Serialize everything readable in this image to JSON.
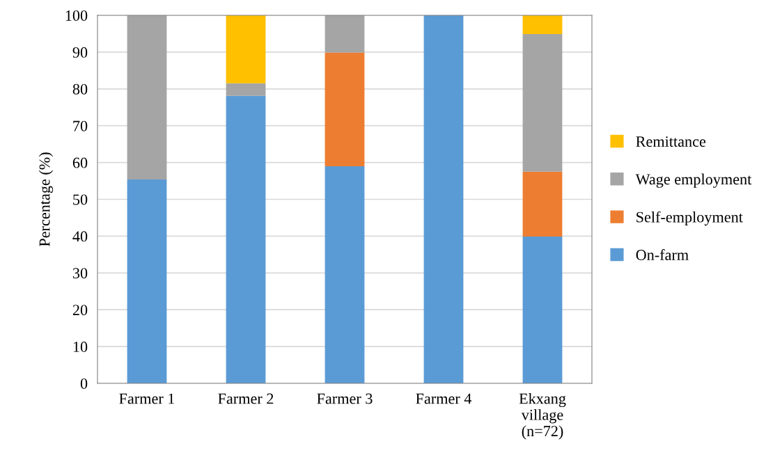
{
  "chart_data": {
    "type": "bar",
    "stacked": true,
    "ylabel": "Percentage (%)",
    "categories": [
      "Farmer 1",
      "Farmer 2",
      "Farmer 3",
      "Farmer 4",
      "Ekxang\nvillage\n(n=72)"
    ],
    "series": [
      {
        "name": "On-farm",
        "color": "#5b9bd5",
        "values": [
          55.4,
          78.1,
          59.0,
          100,
          39.9
        ]
      },
      {
        "name": "Self-employment",
        "color": "#ed7d31",
        "values": [
          0,
          0,
          30.9,
          0,
          17.6
        ]
      },
      {
        "name": "Wage employment",
        "color": "#a5a5a5",
        "values": [
          44.6,
          3.4,
          10.1,
          0,
          37.4
        ]
      },
      {
        "name": "Remittance",
        "color": "#ffc000",
        "values": [
          0,
          18.5,
          0,
          0,
          5.1
        ]
      }
    ],
    "ylim": [
      0,
      100
    ],
    "yticks": [
      0,
      10,
      20,
      30,
      40,
      50,
      60,
      70,
      80,
      90,
      100
    ],
    "grid": "y",
    "legend": "right"
  }
}
